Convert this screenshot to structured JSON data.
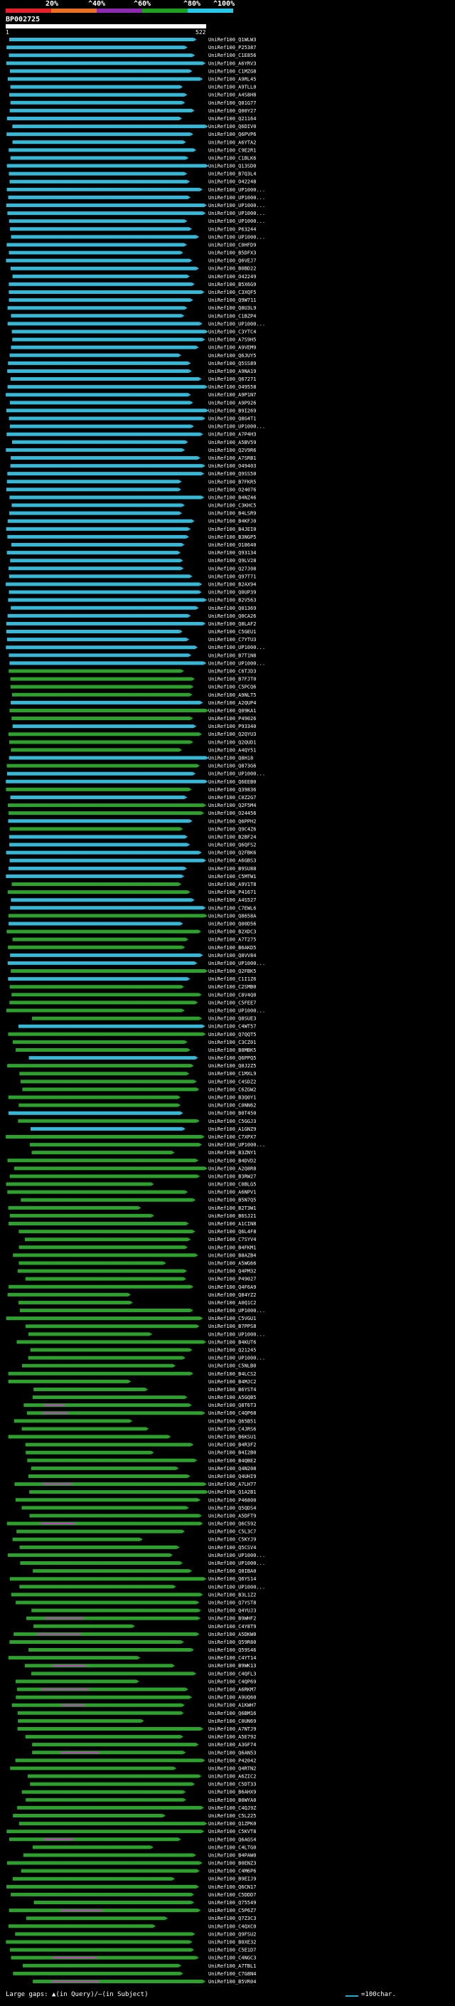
{
  "identity_scale": {
    "labels": [
      "20%",
      "^40%",
      "^60%",
      "^80%",
      "^100%"
    ],
    "colors": [
      "#e8202a",
      "#e87020",
      "#8c2ab0",
      "#20a020",
      "#28c8e8"
    ]
  },
  "query": {
    "name": "BP002725",
    "start": "1",
    "end": "522"
  },
  "hit_colors": {
    "cyan": "#37b8d6",
    "green": "#2ea02e",
    "magenta": "#c040c0",
    "white": "#dddddd"
  },
  "hits": [
    "UniRef100_Q1WLW3",
    "UniRef100_P25387",
    "UniRef100_C1E856",
    "UniRef100_A6YRV3",
    "UniRef100_C1MZG8",
    "UniRef100_A9RL45",
    "UniRef100_A9TLL0",
    "UniRef100_A4S8H8",
    "UniRef100_Q01G77",
    "UniRef100_Q00Y27",
    "UniRef100_Q21164",
    "UniRef100_Q6DIV0",
    "UniRef100_Q6PVP6",
    "UniRef100_A6YTA2",
    "UniRef100_C9E2R1",
    "UniRef100_C1BLK6",
    "UniRef100_Q13SD0",
    "UniRef100_B7Q3L4",
    "UniRef100_O42248",
    "UniRef100_UP1000...",
    "UniRef100_UP1000...",
    "UniRef100_UP1000...",
    "UniRef100_UP1000...",
    "UniRef100_UP1000...",
    "UniRef100_P63244",
    "UniRef100_UP1000...",
    "UniRef100_C0HFD9",
    "UniRef100_B5DFX3",
    "UniRef100_Q6VEJ7",
    "UniRef100_B0BD22",
    "UniRef100_O42249",
    "UniRef100_B5X6G9",
    "UniRef100_C3XQF5",
    "UniRef100_Q9W711",
    "UniRef100_Q8U3L9",
    "UniRef100_C1BZP4",
    "UniRef100_UP1000...",
    "UniRef100_C3YTC4",
    "UniRef100_A7S9H5",
    "UniRef100_A9VEM9",
    "UniRef100_Q6JUY5",
    "UniRef100_Q5SS89",
    "UniRef100_A9NA19",
    "UniRef100_Q67271",
    "UniRef100_O49558",
    "UniRef100_A9P1N7",
    "UniRef100_A9P926",
    "UniRef100_B9I269",
    "UniRef100_Q8G4T1",
    "UniRef100_UP1000...",
    "UniRef100_A7P4H3",
    "UniRef100_A5BV59",
    "UniRef100_Q2V9R6",
    "UniRef100_A7SRB1",
    "UniRef100_O49403",
    "UniRef100_Q9SS50",
    "UniRef100_B7FKR5",
    "UniRef100_O24076",
    "UniRef100_B4NZ46",
    "UniRef100_C3KHC5",
    "UniRef100_B4LSR9",
    "UniRef100_B4KFJ0",
    "UniRef100_B4JEI0",
    "UniRef100_B3NGP5",
    "UniRef100_O18640",
    "UniRef100_Q93134",
    "UniRef100_Q9LV28",
    "UniRef100_Q27J08",
    "UniRef100_Q97T71",
    "UniRef100_B2AX94",
    "UniRef100_Q0UP39",
    "UniRef100_B2V563",
    "UniRef100_Q01369",
    "UniRef100_Q0CA26",
    "UniRef100_Q8LAF2",
    "UniRef100_C5GEU1",
    "UniRef100_C7YTU3",
    "UniRef100_UP1000...",
    "UniRef100_B7T1N8",
    "UniRef100_UP1000...",
    "UniRef100_C6TJD3",
    "UniRef100_B7FJT0",
    "UniRef100_C5PCQ6",
    "UniRef100_A9NLT5",
    "UniRef100_A2QUP4",
    "UniRef100_Q09KA1",
    "UniRef100_P49026",
    "UniRef100_P93340",
    "UniRef100_Q2QYU3",
    "UniRef100_Q2QUD1",
    "UniRef100_A4QY51",
    "UniRef100_Q8H18",
    "UniRef100_Q873G6",
    "UniRef100_UP1000...",
    "UniRef100_Q6EEB0",
    "UniRef100_Q39836",
    "UniRef100_C0Z2G7",
    "UniRef100_Q2F5M4",
    "UniRef100_O24456",
    "UniRef100_Q6PPH2",
    "UniRef100_Q9C4Z6",
    "UniRef100_B2BF24",
    "UniRef100_Q6QFS2",
    "UniRef100_Q2FBK6",
    "UniRef100_A6GBS3",
    "UniRef100_B9SU88",
    "UniRef100_C5MTW1",
    "UniRef100_A9V1T8",
    "UniRef100_P41671",
    "UniRef100_A4S527",
    "UniRef100_C7EWL6",
    "UniRef100_Q8658A",
    "UniRef100_Q00D56",
    "UniRef100_B2XDC3",
    "UniRef100_A7T275",
    "UniRef100_B6AKD5",
    "UniRef100_Q8VV84",
    "UniRef100_UP1000...",
    "UniRef100_Q2FBK5",
    "UniRef100_C1I1Z6",
    "UniRef100_C2SMB0",
    "UniRef100_C8V4Q0",
    "UniRef100_C5FEE7",
    "UniRef100_UP1000...",
    "UniRef100_Q8SUE3",
    "UniRef100_C4WT57",
    "UniRef100_Q7QQT5",
    "UniRef100_C3CZ01",
    "UniRef100_B8MBK5",
    "UniRef100_Q6PPQ5",
    "UniRef100_Q0J2Z5",
    "UniRef100_C1MXL9",
    "UniRef100_C4SDZ2",
    "UniRef100_C6ZGW2",
    "UniRef100_B3Q0Y1",
    "UniRef100_C0NN62",
    "UniRef100_B0T450",
    "UniRef100_C5GGJ3",
    "UniRef100_A1GNZ9",
    "UniRef100_C7XPX7",
    "UniRef100_UP1000...",
    "UniRef100_B3ZNY1",
    "UniRef100_B4DVD2",
    "UniRef100_A2Q8R8",
    "UniRef100_B3RW27",
    "UniRef100_C0BLG5",
    "UniRef100_A6NPV1",
    "UniRef100_B5N7Q5",
    "UniRef100_B2T3W1",
    "UniRef100_B6SJ21",
    "UniRef100_A1CIN8",
    "UniRef100_Q6L4F8",
    "UniRef100_C7SYV4",
    "UniRef100_B4FKM1",
    "UniRef100_B8AZB4",
    "UniRef100_A5WG66",
    "UniRef100_Q4PM32",
    "UniRef100_P49027",
    "UniRef100_Q4F6A9",
    "UniRef100_Q84YZ2",
    "UniRef100_A0Q1C2",
    "UniRef100_UP1000...",
    "UniRef100_C5VGU1",
    "UniRef100_B7PPS8",
    "UniRef100_UP1000...",
    "UniRef100_B4KUT6",
    "UniRef100_Q21245",
    "UniRef100_UP1000...",
    "UniRef100_C5NLB0",
    "UniRef100_B4LCS2",
    "UniRef100_B4MJC2",
    "UniRef100_B6YST4",
    "UniRef100_A5GQB5",
    "UniRef100_Q8T6T3",
    "UniRef100_C4QP68",
    "UniRef100_Q65B51",
    "UniRef100_C4JRS6",
    "UniRef100_B6KSU1",
    "UniRef100_B4R3F2",
    "UniRef100_B4I2B0",
    "UniRef100_B4QBE2",
    "UniRef100_Q4N208",
    "UniRef100_Q4UHI9",
    "UniRef100_A7LH77",
    "UniRef100_Q1A2B1",
    "UniRef100_P46800",
    "UniRef100_Q5QDS4",
    "UniRef100_A5DFT9",
    "UniRef100_Q6C592",
    "UniRef100_C5L3C7",
    "UniRef100_C5KYJ9",
    "UniRef100_Q5CSV4",
    "UniRef100_UP1000...",
    "UniRef100_UP1000...",
    "UniRef100_Q8IBA0",
    "UniRef100_Q6YS14",
    "UniRef100_UP1000...",
    "UniRef100_B3L1Z2",
    "UniRef100_Q7YST8",
    "UniRef100_Q4YUJ3",
    "UniRef100_B9WHF2",
    "UniRef100_C4Y8T9",
    "UniRef100_A5DKW0",
    "UniRef100_Q59R80",
    "UniRef100_Q59S46",
    "UniRef100_C4YT14",
    "UniRef100_B9WK13",
    "UniRef100_C4QFL3",
    "UniRef100_C4QP69",
    "UniRef100_A6RKM7",
    "UniRef100_A9UQ60",
    "UniRef100_A1KWH7",
    "UniRef100_Q6BM16",
    "UniRef100_C0UN69",
    "UniRef100_A7NTJ9",
    "UniRef100_A5E792",
    "UniRef100_A3GF74",
    "UniRef100_Q6AN53",
    "UniRef100_P42042",
    "UniRef100_Q4RTN2",
    "UniRef100_A6ZIC2",
    "UniRef100_C5DT33",
    "UniRef100_B6AHX9",
    "UniRef100_B0WYA0",
    "UniRef100_C4QJ9Z",
    "UniRef100_C5L225",
    "UniRef100_Q1ZPK0",
    "UniRef100_C5KVT8",
    "UniRef100_Q6AGS4",
    "UniRef100_C4LTG0",
    "UniRef100_B4PAW0",
    "UniRef100_B0ENZ3",
    "UniRef100_C4M6P6",
    "UniRef100_B9EIJ9",
    "UniRef100_Q6CN17",
    "UniRef100_C5DDD7",
    "UniRef100_Q75549",
    "UniRef100_C5P6Z7",
    "UniRef100_Q7Z3C3",
    "UniRef100_C4QXC0",
    "UniRef100_Q9FSU2",
    "UniRef100_B0XE32",
    "UniRef100_C5E1D7",
    "UniRef100_C4NGC3",
    "UniRef100_A7TBL1",
    "UniRef100_C7G8N4",
    "UniRef100_B5VR04"
  ],
  "footer": {
    "gaps_text": "Large gaps: ▲(in Query)/—(in Subject)",
    "scale_text": "=100char."
  }
}
